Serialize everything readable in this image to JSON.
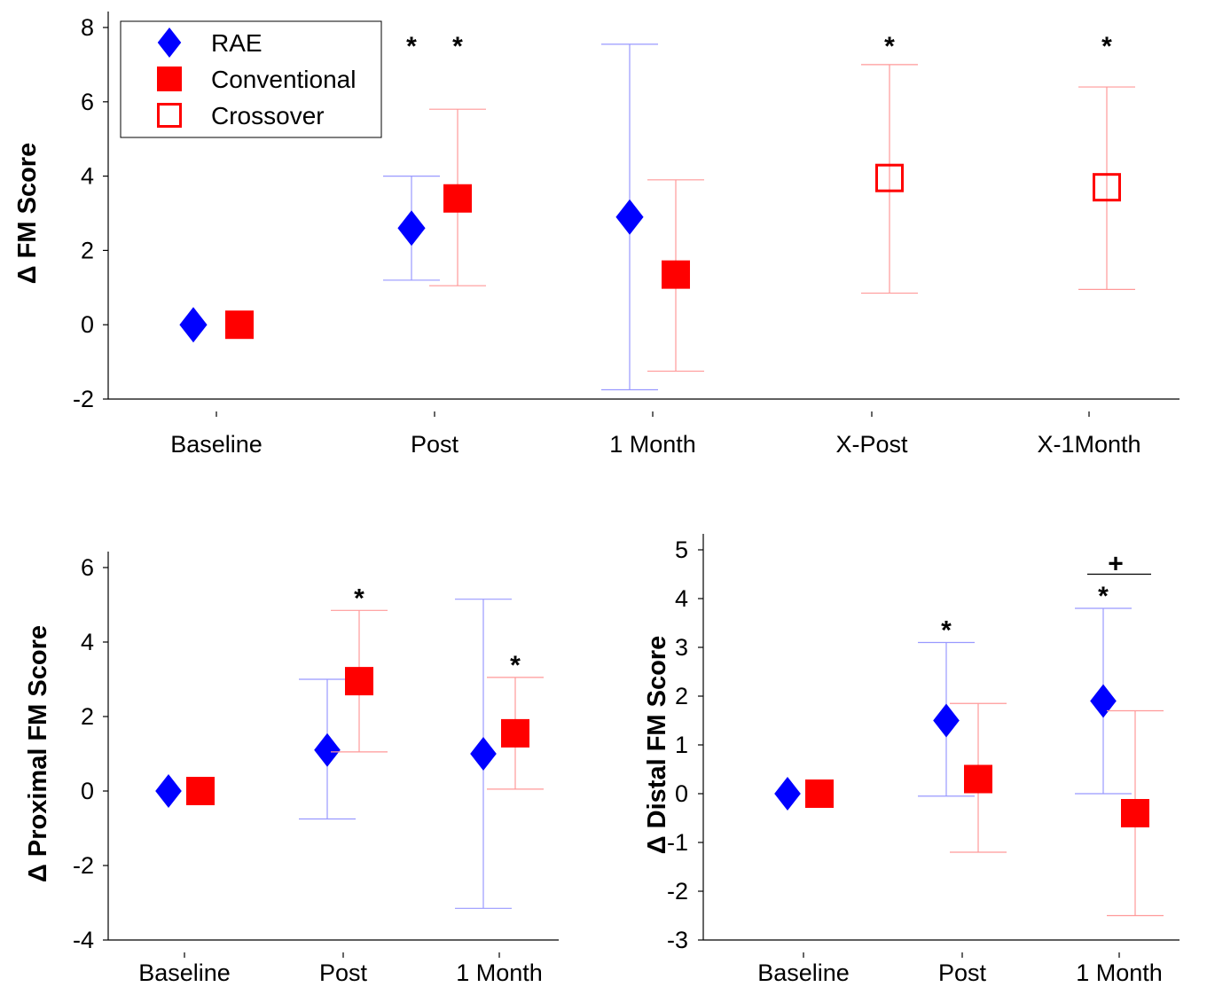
{
  "chart_data": [
    {
      "type": "scatter",
      "title": "",
      "xlabel": "",
      "ylabel": "Δ FM Score",
      "ylim": [
        -2,
        8
      ],
      "yticks": [
        "-2",
        "0",
        "2",
        "4",
        "6",
        "8"
      ],
      "categories": [
        "Baseline",
        "Post",
        "1 Month",
        "X-Post",
        "X-1Month"
      ],
      "legend": {
        "position": "top-left",
        "entries": [
          {
            "label": "RAE",
            "marker": "diamond",
            "color": "#0000ff"
          },
          {
            "label": "Conventional",
            "marker": "filled-square",
            "color": "#ff0000"
          },
          {
            "label": "Crossover",
            "marker": "open-square",
            "color": "#ff0000"
          }
        ]
      },
      "series": [
        {
          "name": "RAE",
          "marker": "diamond",
          "color": "#0000ff",
          "points": [
            {
              "category": "Baseline",
              "y": 0
            },
            {
              "category": "Post",
              "y": 2.6,
              "lo": 1.2,
              "hi": 4.0
            },
            {
              "category": "1 Month",
              "y": 2.9,
              "lo": -1.75,
              "hi": 7.55
            }
          ]
        },
        {
          "name": "Conventional",
          "marker": "filled-square",
          "color": "#ff0000",
          "points": [
            {
              "category": "Baseline",
              "y": 0
            },
            {
              "category": "Post",
              "y": 3.4,
              "lo": 1.05,
              "hi": 5.8
            },
            {
              "category": "1 Month",
              "y": 1.35,
              "lo": -1.25,
              "hi": 3.9
            }
          ]
        },
        {
          "name": "Crossover",
          "marker": "open-square",
          "color": "#ff0000",
          "points": [
            {
              "category": "X-Post",
              "y": 3.95,
              "lo": 0.85,
              "hi": 7.0
            },
            {
              "category": "X-1Month",
              "y": 3.7,
              "lo": 0.95,
              "hi": 6.4
            }
          ]
        }
      ],
      "annotations": [
        {
          "text": "*",
          "category": "Post",
          "series": "RAE"
        },
        {
          "text": "*",
          "category": "Post",
          "series": "Conventional"
        },
        {
          "text": "*",
          "category": "X-Post",
          "series": "Crossover"
        },
        {
          "text": "*",
          "category": "X-1Month",
          "series": "Crossover"
        }
      ]
    },
    {
      "type": "scatter",
      "title": "",
      "xlabel": "",
      "ylabel": "Δ Proximal FM Score",
      "ylim": [
        -4,
        6
      ],
      "yticks": [
        "-4",
        "-2",
        "0",
        "2",
        "4",
        "6"
      ],
      "categories": [
        "Baseline",
        "Post",
        "1 Month"
      ],
      "series": [
        {
          "name": "RAE",
          "marker": "diamond",
          "color": "#0000ff",
          "points": [
            {
              "category": "Baseline",
              "y": 0
            },
            {
              "category": "Post",
              "y": 1.1,
              "lo": -0.75,
              "hi": 3.0
            },
            {
              "category": "1 Month",
              "y": 1.0,
              "lo": -3.15,
              "hi": 5.15
            }
          ]
        },
        {
          "name": "Conventional",
          "marker": "filled-square",
          "color": "#ff0000",
          "points": [
            {
              "category": "Baseline",
              "y": 0
            },
            {
              "category": "Post",
              "y": 2.95,
              "lo": 1.05,
              "hi": 4.85
            },
            {
              "category": "1 Month",
              "y": 1.55,
              "lo": 0.05,
              "hi": 3.05
            }
          ]
        }
      ],
      "annotations": [
        {
          "text": "*",
          "category": "Post",
          "series": "Conventional"
        },
        {
          "text": "*",
          "category": "1 Month",
          "series": "Conventional"
        }
      ]
    },
    {
      "type": "scatter",
      "title": "",
      "xlabel": "",
      "ylabel": "Δ Distal FM Score",
      "ylim": [
        -3,
        5
      ],
      "yticks": [
        "-3",
        "-2",
        "-1",
        "0",
        "1",
        "2",
        "3",
        "4",
        "5"
      ],
      "categories": [
        "Baseline",
        "Post",
        "1 Month"
      ],
      "series": [
        {
          "name": "RAE",
          "marker": "diamond",
          "color": "#0000ff",
          "points": [
            {
              "category": "Baseline",
              "y": 0
            },
            {
              "category": "Post",
              "y": 1.5,
              "lo": -0.05,
              "hi": 3.1
            },
            {
              "category": "1 Month",
              "y": 1.9,
              "lo": 0.0,
              "hi": 3.8
            }
          ]
        },
        {
          "name": "Conventional",
          "marker": "filled-square",
          "color": "#ff0000",
          "points": [
            {
              "category": "Baseline",
              "y": 0
            },
            {
              "category": "Post",
              "y": 0.3,
              "lo": -1.2,
              "hi": 1.85
            },
            {
              "category": "1 Month",
              "y": -0.4,
              "lo": -2.5,
              "hi": 1.7
            }
          ]
        }
      ],
      "annotations": [
        {
          "text": "*",
          "category": "Post",
          "series": "RAE"
        },
        {
          "text": "*",
          "category": "1 Month",
          "series": "RAE"
        },
        {
          "text": "+",
          "category": "1 Month",
          "series": "between-groups"
        }
      ]
    }
  ]
}
